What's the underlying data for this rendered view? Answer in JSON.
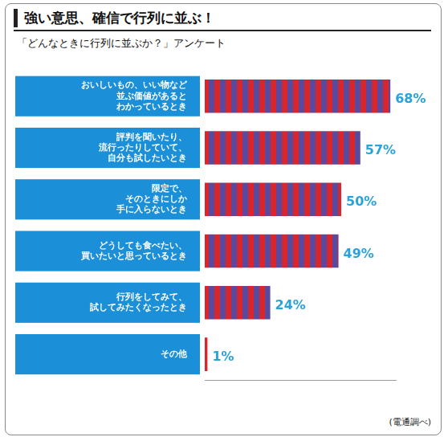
{
  "chart_data": {
    "type": "bar",
    "orientation": "horizontal",
    "title": "強い意思、確信で行列に並ぶ！",
    "subtitle": "「どんなときに行列に並ぶか？」アンケート",
    "annotation": "(電通調べ)",
    "categories": [
      "おいしいもの、いい物など\n並ぶ価値があると\nわかっているとき",
      "評判を聞いたり、\n流行ったりしていて、\n自分も試したいとき",
      "限定で、\nそのときにしか\n手に入らないとき",
      "どうしても食べたい、\n買いたいと思っているとき",
      "行列をしてみて、\n試してみたくなったとき",
      "その他"
    ],
    "values": [
      68,
      57,
      50,
      49,
      24,
      1
    ],
    "value_labels": [
      "68%",
      "57%",
      "50%",
      "49%",
      "24%",
      "1%"
    ],
    "color": "#d7262e",
    "xlim": [
      0,
      70
    ],
    "grid": false,
    "data_labels": true,
    "tick_labels": "y"
  }
}
